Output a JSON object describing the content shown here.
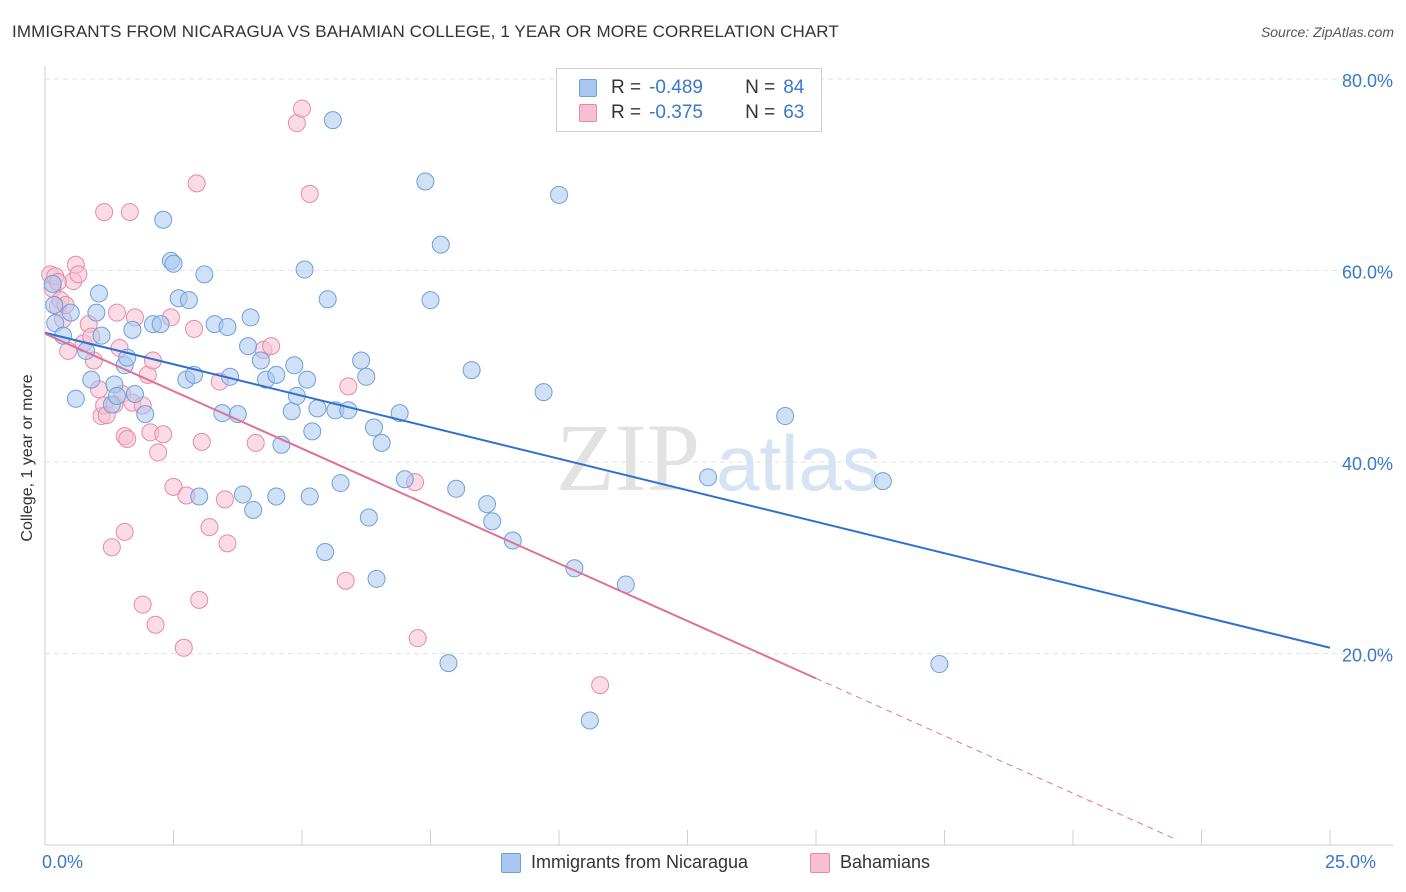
{
  "header": {
    "title": "IMMIGRANTS FROM NICARAGUA VS BAHAMIAN COLLEGE, 1 YEAR OR MORE CORRELATION CHART",
    "source": "Source: ZipAtlas.com"
  },
  "legend": {
    "r_label": "R =",
    "n_label": "N =",
    "rows": [
      {
        "r": "-0.489",
        "n": "84",
        "color": "#a9c8f0",
        "border": "#6f9fd8"
      },
      {
        "r": "-0.375",
        "n": "63",
        "color": "#f7bfd1",
        "border": "#e58aa8"
      }
    ]
  },
  "bottom_legend": [
    {
      "label": "Immigrants from Nicaragua",
      "color": "#a9c8f0",
      "border": "#6f9fd8"
    },
    {
      "label": "Bahamians",
      "color": "#f7bfd1",
      "border": "#e58aa8"
    }
  ],
  "watermark": {
    "part1": "ZIP",
    "part2": "atlas"
  },
  "chart_data": {
    "type": "scatter",
    "title": "IMMIGRANTS FROM NICARAGUA VS BAHAMIAN COLLEGE, 1 YEAR OR MORE CORRELATION CHART",
    "xlabel": "",
    "ylabel": "College, 1 year or more",
    "xlim": [
      0,
      25
    ],
    "ylim": [
      0,
      80
    ],
    "x_tick_labels": [
      "0.0%",
      "25.0%"
    ],
    "y_ticks": [
      20,
      40,
      60,
      80
    ],
    "y_tick_labels": [
      "20.0%",
      "40.0%",
      "60.0%",
      "80.0%"
    ],
    "grid": true,
    "legend_position": "top-center",
    "series": [
      {
        "name": "Immigrants from Nicaragua",
        "color": "#a9c8f0",
        "line_color": "#2f6fd0",
        "trend": {
          "x0": 0,
          "y0": 53.5,
          "x1": 25,
          "y1": 20.6
        },
        "points": [
          [
            0.15,
            58.6
          ],
          [
            0.18,
            56.4
          ],
          [
            0.2,
            54.5
          ],
          [
            0.35,
            53.2
          ],
          [
            0.5,
            55.6
          ],
          [
            0.6,
            46.6
          ],
          [
            0.8,
            51.6
          ],
          [
            0.9,
            48.6
          ],
          [
            1.0,
            55.6
          ],
          [
            1.05,
            57.6
          ],
          [
            1.1,
            53.2
          ],
          [
            1.3,
            46.0
          ],
          [
            1.35,
            48.1
          ],
          [
            1.4,
            46.9
          ],
          [
            1.55,
            50.1
          ],
          [
            1.6,
            50.9
          ],
          [
            1.7,
            53.8
          ],
          [
            1.75,
            47.1
          ],
          [
            1.95,
            45.0
          ],
          [
            2.1,
            54.4
          ],
          [
            2.25,
            54.4
          ],
          [
            2.3,
            65.3
          ],
          [
            2.6,
            57.1
          ],
          [
            2.75,
            48.6
          ],
          [
            2.8,
            56.9
          ],
          [
            2.45,
            61.0
          ],
          [
            2.5,
            60.7
          ],
          [
            2.9,
            49.1
          ],
          [
            3.0,
            36.4
          ],
          [
            3.1,
            59.6
          ],
          [
            3.3,
            54.4
          ],
          [
            3.45,
            45.1
          ],
          [
            3.55,
            54.1
          ],
          [
            3.6,
            48.9
          ],
          [
            3.75,
            45.0
          ],
          [
            3.85,
            36.6
          ],
          [
            3.95,
            52.1
          ],
          [
            4.0,
            55.1
          ],
          [
            4.05,
            35.0
          ],
          [
            4.2,
            50.6
          ],
          [
            4.3,
            48.6
          ],
          [
            4.5,
            49.1
          ],
          [
            4.5,
            36.4
          ],
          [
            4.6,
            41.8
          ],
          [
            4.8,
            45.3
          ],
          [
            4.85,
            50.1
          ],
          [
            4.9,
            46.9
          ],
          [
            5.05,
            60.1
          ],
          [
            5.1,
            48.6
          ],
          [
            5.15,
            36.4
          ],
          [
            5.2,
            43.2
          ],
          [
            5.3,
            45.6
          ],
          [
            5.5,
            57.0
          ],
          [
            5.45,
            30.6
          ],
          [
            5.65,
            45.4
          ],
          [
            5.6,
            75.7
          ],
          [
            5.75,
            37.8
          ],
          [
            5.9,
            45.4
          ],
          [
            6.15,
            50.6
          ],
          [
            6.25,
            48.9
          ],
          [
            6.3,
            34.2
          ],
          [
            6.4,
            43.6
          ],
          [
            6.45,
            27.8
          ],
          [
            6.55,
            42.0
          ],
          [
            6.9,
            45.1
          ],
          [
            7.0,
            38.2
          ],
          [
            7.5,
            56.9
          ],
          [
            7.4,
            69.3
          ],
          [
            7.7,
            62.7
          ],
          [
            7.85,
            19.0
          ],
          [
            8.0,
            37.2
          ],
          [
            8.3,
            49.6
          ],
          [
            8.6,
            35.6
          ],
          [
            8.7,
            33.8
          ],
          [
            9.1,
            31.8
          ],
          [
            9.7,
            47.3
          ],
          [
            10.0,
            67.9
          ],
          [
            10.3,
            28.9
          ],
          [
            10.6,
            13.0
          ],
          [
            11.3,
            27.2
          ],
          [
            12.9,
            38.4
          ],
          [
            14.4,
            44.8
          ],
          [
            16.3,
            38.0
          ],
          [
            17.4,
            18.9
          ]
        ]
      },
      {
        "name": "Bahamians",
        "color": "#f7bfd1",
        "line_color": "#e0709a",
        "trend": {
          "x0": 0,
          "y0": 53.4,
          "x1": 15.0,
          "y1": 17.4
        },
        "trend_dashed_to": {
          "x": 22.0,
          "y": 0.6
        },
        "points": [
          [
            0.1,
            59.6
          ],
          [
            0.15,
            58.1
          ],
          [
            0.2,
            59.4
          ],
          [
            0.25,
            56.2
          ],
          [
            0.3,
            56.9
          ],
          [
            0.35,
            54.9
          ],
          [
            0.45,
            51.6
          ],
          [
            0.55,
            58.9
          ],
          [
            0.6,
            60.6
          ],
          [
            0.65,
            59.6
          ],
          [
            0.75,
            52.4
          ],
          [
            0.85,
            54.4
          ],
          [
            0.9,
            53.1
          ],
          [
            0.95,
            50.6
          ],
          [
            1.05,
            47.6
          ],
          [
            1.1,
            44.8
          ],
          [
            1.15,
            45.9
          ],
          [
            1.2,
            44.9
          ],
          [
            1.15,
            66.1
          ],
          [
            1.3,
            31.1
          ],
          [
            1.35,
            46.0
          ],
          [
            1.4,
            55.6
          ],
          [
            1.45,
            51.9
          ],
          [
            1.5,
            47.1
          ],
          [
            1.55,
            32.7
          ],
          [
            1.55,
            42.7
          ],
          [
            1.6,
            42.4
          ],
          [
            1.65,
            66.1
          ],
          [
            1.7,
            46.2
          ],
          [
            1.75,
            55.1
          ],
          [
            1.9,
            45.9
          ],
          [
            1.9,
            25.1
          ],
          [
            2.0,
            49.1
          ],
          [
            2.05,
            43.1
          ],
          [
            2.1,
            50.6
          ],
          [
            2.15,
            23.0
          ],
          [
            2.2,
            41.0
          ],
          [
            2.3,
            42.9
          ],
          [
            2.45,
            55.1
          ],
          [
            2.5,
            37.4
          ],
          [
            2.7,
            20.6
          ],
          [
            2.75,
            36.5
          ],
          [
            2.9,
            53.9
          ],
          [
            2.95,
            69.1
          ],
          [
            3.0,
            25.6
          ],
          [
            3.05,
            42.1
          ],
          [
            3.2,
            33.2
          ],
          [
            3.4,
            48.4
          ],
          [
            3.5,
            36.1
          ],
          [
            3.55,
            31.5
          ],
          [
            4.1,
            42.0
          ],
          [
            4.25,
            51.7
          ],
          [
            4.4,
            52.1
          ],
          [
            4.9,
            75.4
          ],
          [
            5.0,
            76.9
          ],
          [
            5.15,
            68.0
          ],
          [
            5.85,
            27.6
          ],
          [
            5.9,
            47.9
          ],
          [
            7.2,
            37.9
          ],
          [
            7.25,
            21.6
          ],
          [
            10.8,
            16.7
          ],
          [
            0.25,
            58.8
          ],
          [
            0.4,
            56.4
          ]
        ]
      }
    ]
  }
}
